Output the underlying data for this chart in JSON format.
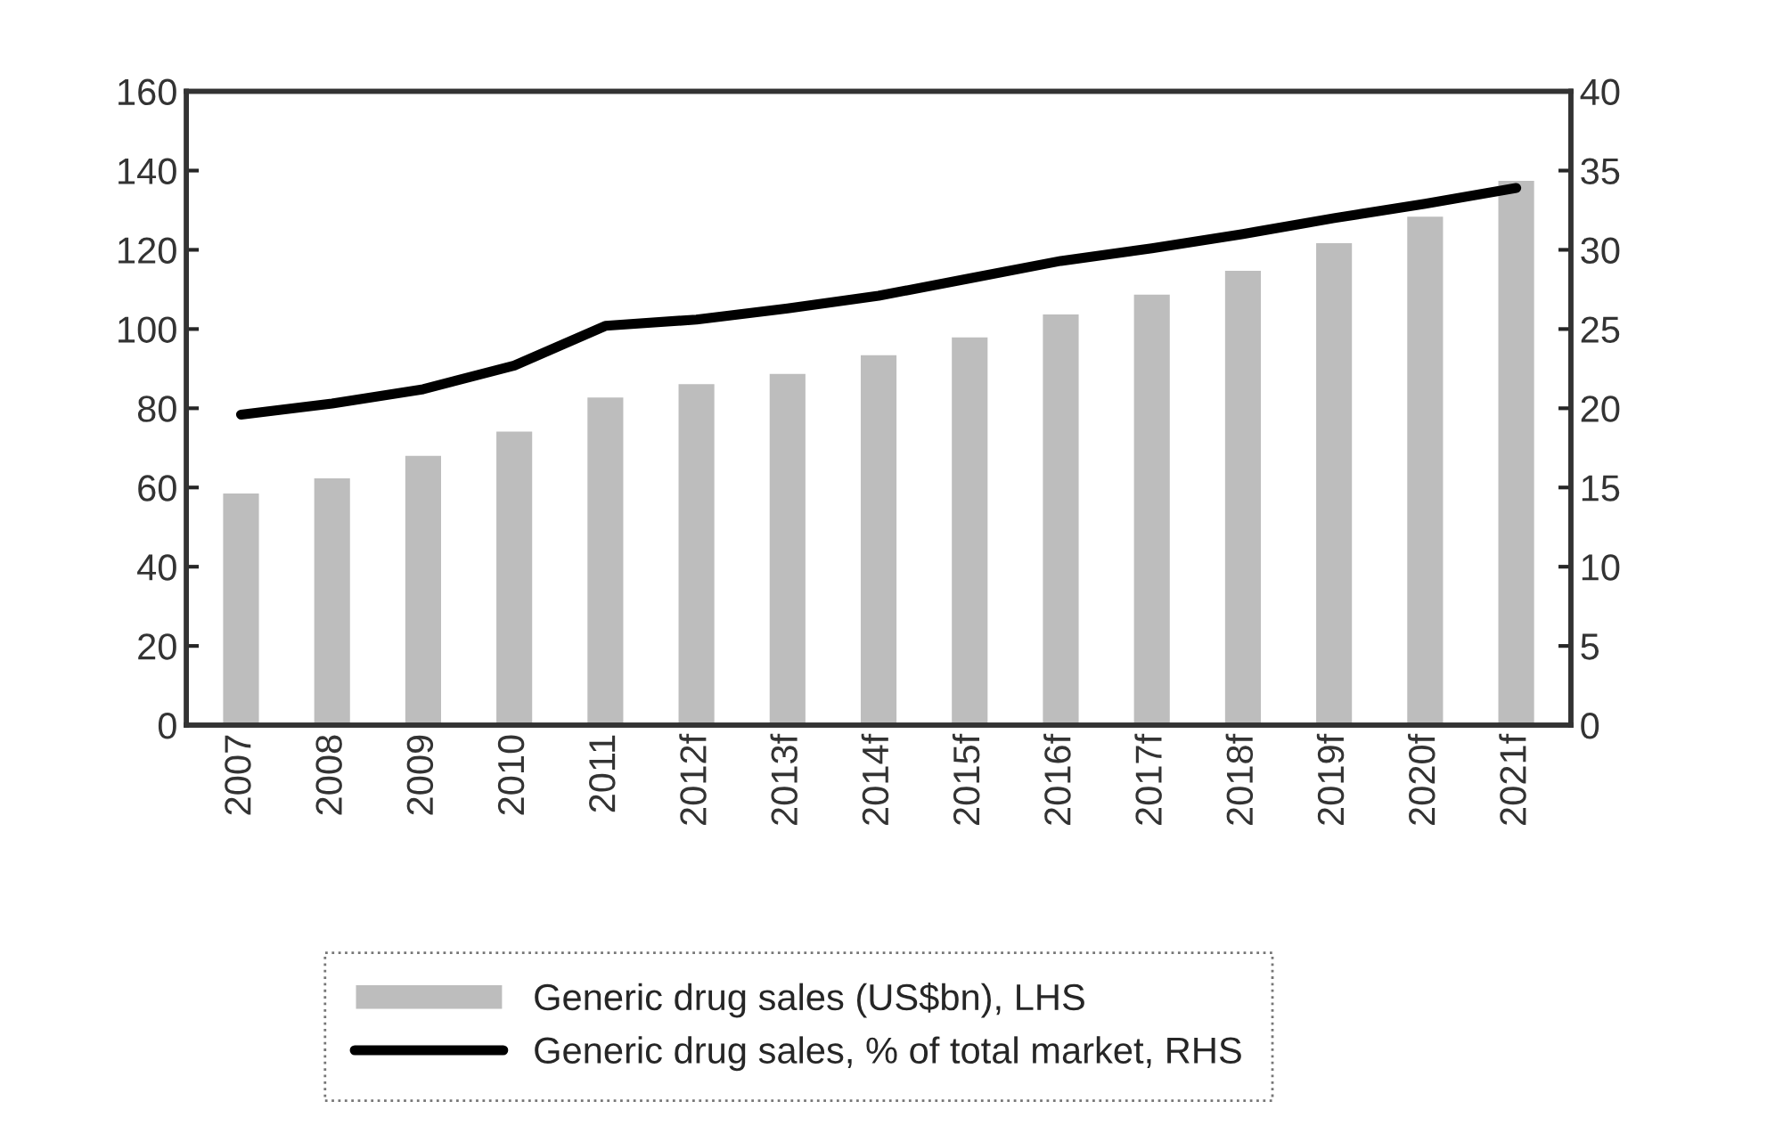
{
  "chart_data": {
    "type": "bar",
    "categories": [
      "2007",
      "2008",
      "2009",
      "2010",
      "2011",
      "2012f",
      "2013f",
      "2014f",
      "2015f",
      "2016f",
      "2017f",
      "2018f",
      "2019f",
      "2020f",
      "2021f"
    ],
    "series": [
      {
        "name": "Generic drug sales (US$bn), LHS",
        "color": "#bdbdbd",
        "values": [
          58.8,
          62.6,
          68.3,
          74.4,
          83,
          86.4,
          89,
          93.7,
          98.2,
          104,
          109,
          115,
          122,
          128.7,
          137.7
        ]
      },
      {
        "name": "Generic drug sales, % of total market, RHS",
        "type": "line",
        "axis": "y2",
        "color": "#000000",
        "values": [
          19.6,
          20.3,
          21.2,
          22.7,
          25.2,
          25.6,
          26.3,
          27.1,
          28.2,
          29.3,
          30.1,
          31,
          32,
          32.9,
          33.9
        ]
      }
    ],
    "ylim": [
      0,
      160
    ],
    "yticks": [
      0,
      20,
      40,
      60,
      80,
      100,
      120,
      140,
      160
    ],
    "y2lim": [
      0,
      40
    ],
    "y2ticks": [
      0,
      5,
      10,
      15,
      20,
      25,
      30,
      35,
      40
    ],
    "grid": false,
    "legend": "bottom",
    "marker": "none",
    "line_style": "solid"
  }
}
